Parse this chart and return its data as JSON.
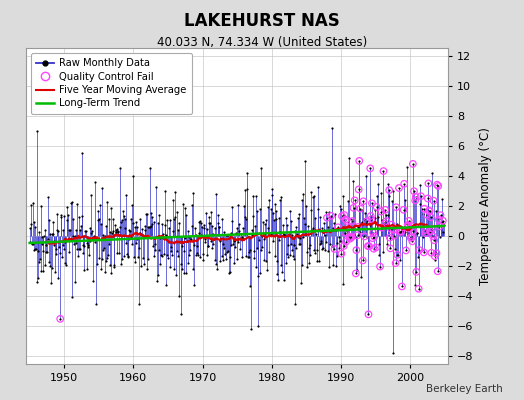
{
  "title": "LAKEHURST NAS",
  "subtitle": "40.033 N, 74.334 W (United States)",
  "ylabel": "Temperature Anomaly (°C)",
  "credit": "Berkeley Earth",
  "xlim": [
    1944.5,
    2005.5
  ],
  "ylim": [
    -8.5,
    12.5
  ],
  "yticks": [
    -8,
    -6,
    -4,
    -2,
    0,
    2,
    4,
    6,
    8,
    10,
    12
  ],
  "xticks": [
    1950,
    1960,
    1970,
    1980,
    1990,
    2000
  ],
  "bg_color": "#dcdcdc",
  "plot_bg_color": "#ffffff",
  "raw_line_color": "#3333cc",
  "raw_dot_color": "#000000",
  "qc_fail_color": "#ff44ff",
  "moving_avg_color": "#dd0000",
  "trend_color": "#00bb00",
  "start_year": 1945,
  "end_year": 2004,
  "seed": 42
}
